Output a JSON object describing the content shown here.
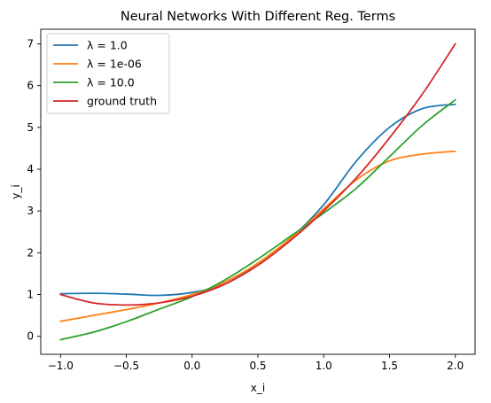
{
  "chart_data": {
    "type": "line",
    "title": "Neural Networks With Different Reg. Terms",
    "xlabel": "x_i",
    "ylabel": "y_i",
    "xlim": [
      -1.15,
      2.15
    ],
    "ylim": [
      -0.43,
      7.35
    ],
    "xticks": [
      -1.0,
      -0.5,
      0.0,
      0.5,
      1.0,
      1.5,
      2.0
    ],
    "xtick_labels": [
      "−1.0",
      "−0.5",
      "0.0",
      "0.5",
      "1.0",
      "1.5",
      "2.0"
    ],
    "yticks": [
      0,
      1,
      2,
      3,
      4,
      5,
      6,
      7
    ],
    "ytick_labels": [
      "0",
      "1",
      "2",
      "3",
      "4",
      "5",
      "6",
      "7"
    ],
    "grid": false,
    "legend_position": "top-left",
    "series": [
      {
        "name": "λ = 1.0",
        "color": "#1f77b4",
        "x": [
          -1.0,
          -0.75,
          -0.5,
          -0.25,
          0.0,
          0.25,
          0.5,
          0.75,
          1.0,
          1.25,
          1.5,
          1.75,
          2.0
        ],
        "y": [
          1.02,
          1.03,
          1.01,
          0.98,
          1.05,
          1.25,
          1.75,
          2.35,
          3.15,
          4.2,
          5.0,
          5.45,
          5.55
        ]
      },
      {
        "name": "λ = 1e-06",
        "color": "#ff7f0e",
        "x": [
          -1.0,
          -0.75,
          -0.5,
          -0.25,
          0.0,
          0.25,
          0.5,
          0.75,
          1.0,
          1.25,
          1.5,
          1.75,
          2.0
        ],
        "y": [
          0.36,
          0.5,
          0.64,
          0.8,
          1.0,
          1.3,
          1.75,
          2.35,
          3.05,
          3.75,
          4.2,
          4.36,
          4.43
        ]
      },
      {
        "name": "λ = 10.0",
        "color": "#2ca02c",
        "x": [
          -1.0,
          -0.75,
          -0.5,
          -0.25,
          0.0,
          0.25,
          0.5,
          0.75,
          1.0,
          1.25,
          1.5,
          1.75,
          2.0
        ],
        "y": [
          -0.08,
          0.1,
          0.35,
          0.65,
          0.95,
          1.35,
          1.85,
          2.4,
          2.95,
          3.55,
          4.3,
          5.05,
          5.66
        ]
      },
      {
        "name": "ground truth",
        "color": "#d62728",
        "x": [
          -1.0,
          -0.75,
          -0.5,
          -0.25,
          0.0,
          0.25,
          0.5,
          0.75,
          1.0,
          1.25,
          1.5,
          1.75,
          2.0
        ],
        "y": [
          1.0,
          0.8,
          0.75,
          0.8,
          0.96,
          1.25,
          1.7,
          2.3,
          3.0,
          3.8,
          4.75,
          5.8,
          7.0
        ]
      }
    ]
  }
}
